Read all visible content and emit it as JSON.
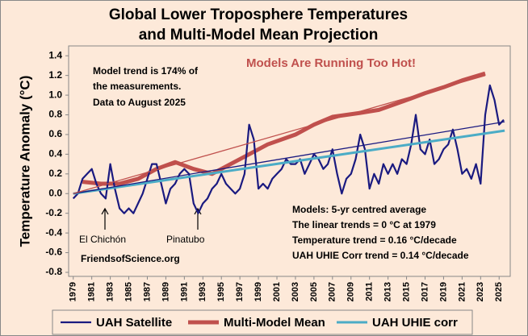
{
  "chart_data": {
    "type": "line",
    "title": [
      "Global Lower Troposphere Temperatures",
      "and Multi-Model Mean Projection"
    ],
    "y_label": "Temperature Anomaly (°C)",
    "xlim": [
      1978.5,
      2026.2
    ],
    "ylim": [
      -0.8,
      1.5
    ],
    "xticks": [
      1979,
      1981,
      1983,
      1985,
      1987,
      1989,
      1991,
      1993,
      1995,
      1997,
      1999,
      2001,
      2003,
      2005,
      2007,
      2009,
      2011,
      2013,
      2015,
      2017,
      2019,
      2021,
      2023,
      2025
    ],
    "yticks": [
      1.4,
      1.2,
      {
        "value": 1,
        "label": "1.0"
      },
      0.8,
      0.6,
      0.4,
      0.2,
      {
        "value": 0,
        "label": "0.0"
      },
      -0.2,
      -0.4,
      -0.6,
      -0.8
    ],
    "grid": false,
    "series": [
      {
        "name": "UAH  Satellite",
        "color": "#1a1a80",
        "width": 2.2,
        "x": [
          1979,
          1979.5,
          1980,
          1980.5,
          1981,
          1981.5,
          1982,
          1982.5,
          1983,
          1983.5,
          1984,
          1984.5,
          1985,
          1985.5,
          1986,
          1986.5,
          1987,
          1987.5,
          1988,
          1988.5,
          1989,
          1989.5,
          1990,
          1990.5,
          1991,
          1991.5,
          1992,
          1992.5,
          1993,
          1993.5,
          1994,
          1994.5,
          1995,
          1995.5,
          1996,
          1996.5,
          1997,
          1997.5,
          1998,
          1998.5,
          1999,
          1999.5,
          2000,
          2000.5,
          2001,
          2001.5,
          2002,
          2002.5,
          2003,
          2003.5,
          2004,
          2004.5,
          2005,
          2005.5,
          2006,
          2006.5,
          2007,
          2007.5,
          2008,
          2008.5,
          2009,
          2009.5,
          2010,
          2010.5,
          2011,
          2011.5,
          2012,
          2012.5,
          2013,
          2013.5,
          2014,
          2014.5,
          2015,
          2015.5,
          2016,
          2016.5,
          2017,
          2017.5,
          2018,
          2018.5,
          2019,
          2019.5,
          2020,
          2020.5,
          2021,
          2021.5,
          2022,
          2022.5,
          2023,
          2023.5,
          2024,
          2024.5,
          2025,
          2025.5
        ],
        "values": [
          -0.05,
          0.0,
          0.15,
          0.2,
          0.25,
          0.1,
          0.0,
          -0.05,
          0.3,
          0.05,
          -0.15,
          -0.2,
          -0.15,
          -0.2,
          -0.1,
          0.0,
          0.15,
          0.3,
          0.3,
          0.1,
          -0.1,
          0.05,
          0.1,
          0.2,
          0.25,
          0.2,
          -0.1,
          -0.2,
          -0.1,
          -0.05,
          0.05,
          0.1,
          0.2,
          0.1,
          0.05,
          0.0,
          0.05,
          0.2,
          0.7,
          0.55,
          0.05,
          0.1,
          0.05,
          0.15,
          0.2,
          0.25,
          0.35,
          0.3,
          0.3,
          0.35,
          0.2,
          0.3,
          0.4,
          0.35,
          0.25,
          0.3,
          0.45,
          0.2,
          0.0,
          0.15,
          0.2,
          0.35,
          0.6,
          0.45,
          0.05,
          0.2,
          0.1,
          0.3,
          0.2,
          0.3,
          0.2,
          0.35,
          0.3,
          0.5,
          0.8,
          0.45,
          0.4,
          0.55,
          0.3,
          0.35,
          0.45,
          0.5,
          0.65,
          0.45,
          0.2,
          0.25,
          0.15,
          0.3,
          0.1,
          0.8,
          1.1,
          0.95,
          0.7,
          0.75
        ]
      },
      {
        "name": "Multi-Model Mean",
        "color": "#c0504d",
        "width": 5,
        "x": [
          1980,
          1982,
          1984,
          1986,
          1988,
          1990,
          1992,
          1994,
          1996,
          1998,
          2000,
          2003,
          2005,
          2007,
          2010,
          2012,
          2015,
          2017,
          2019,
          2021,
          2023.5
        ],
        "values": [
          0.12,
          0.1,
          0.1,
          0.15,
          0.25,
          0.32,
          0.25,
          0.2,
          0.3,
          0.4,
          0.5,
          0.6,
          0.7,
          0.78,
          0.82,
          0.85,
          0.95,
          1.02,
          1.08,
          1.15,
          1.22
        ]
      },
      {
        "name": "UAH UHIE corr",
        "color": "#4bacc6",
        "width": 3,
        "x": [
          1979,
          2025.6
        ],
        "values": [
          0,
          0.64
        ]
      }
    ],
    "trend_lines": [
      {
        "color": "#1a1a80",
        "x": [
          1979,
          2025.6
        ],
        "values": [
          0,
          0.73
        ]
      },
      {
        "color": "#c0504d",
        "x": [
          1979,
          2023.5
        ],
        "values": [
          0,
          1.2
        ]
      }
    ],
    "annotations": {
      "model_note": [
        "Model trend is 174% of",
        "the measurements.",
        "Data to August 2025"
      ],
      "headline": "Models Are Running Too Hot!",
      "notes": [
        "Models: 5-yr centred average",
        "The linear trends = 0 °C at 1979",
        "Temperature trend = 0.16 °C/decade",
        "UAH UHIE Corr trend = 0.14 °C/decade"
      ],
      "el_chichon": "El Chichón",
      "pinatubo": "Pinatubo",
      "source": "FriendsofScience.org"
    }
  }
}
